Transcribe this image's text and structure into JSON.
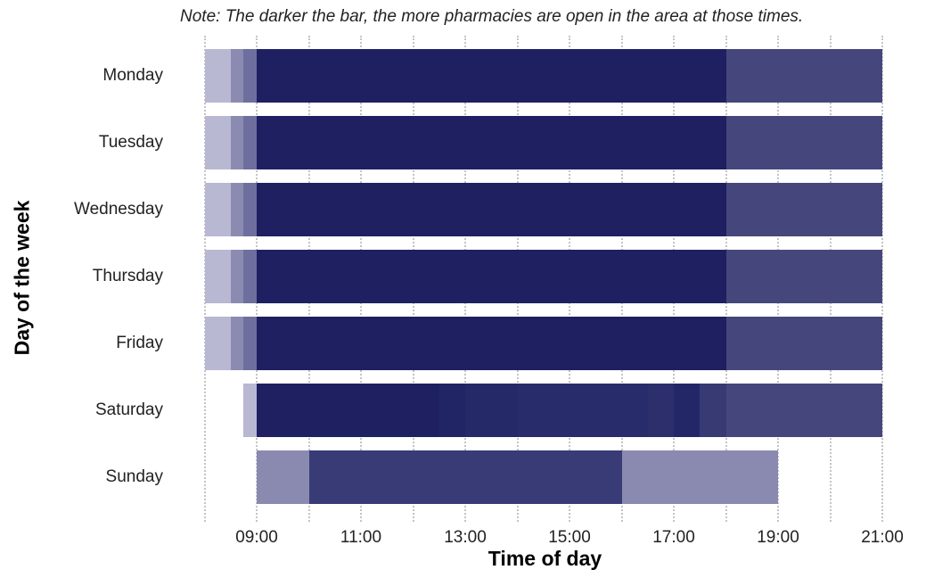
{
  "note": "Note: The darker the bar, the more pharmacies are open in the area at those times.",
  "chart_data": {
    "type": "bar",
    "subtype": "horizontal-timeline-heat",
    "title": "",
    "annotation": "Note: The darker the bar, the more pharmacies are open in the area at those times.",
    "xlabel": "Time of day",
    "ylabel": "Day of the week",
    "xlim": [
      "08:00",
      "21:00"
    ],
    "xticks": [
      "09:00",
      "11:00",
      "13:00",
      "15:00",
      "17:00",
      "19:00",
      "21:00"
    ],
    "grid": "vertical dotted, hourly",
    "categories": [
      "Monday",
      "Tuesday",
      "Wednesday",
      "Thursday",
      "Friday",
      "Saturday",
      "Sunday"
    ],
    "series": [
      {
        "name": "Monday",
        "segments": [
          {
            "start": "08:00",
            "end": "08:30",
            "shade": "light",
            "color": "#b8b8d3"
          },
          {
            "start": "08:30",
            "end": "08:45",
            "shade": "medium-light",
            "color": "#8b8bb2"
          },
          {
            "start": "08:45",
            "end": "09:00",
            "shade": "medium",
            "color": "#6e6f9e"
          },
          {
            "start": "09:00",
            "end": "18:00",
            "shade": "darkest",
            "color": "#1e2062"
          },
          {
            "start": "18:00",
            "end": "21:00",
            "shade": "dark",
            "color": "#45477c"
          }
        ]
      },
      {
        "name": "Tuesday",
        "segments": [
          {
            "start": "08:00",
            "end": "08:30",
            "shade": "light",
            "color": "#b8b8d3"
          },
          {
            "start": "08:30",
            "end": "08:45",
            "shade": "medium-light",
            "color": "#8b8bb2"
          },
          {
            "start": "08:45",
            "end": "09:00",
            "shade": "medium",
            "color": "#6e6f9e"
          },
          {
            "start": "09:00",
            "end": "18:00",
            "shade": "darkest",
            "color": "#1e2062"
          },
          {
            "start": "18:00",
            "end": "21:00",
            "shade": "dark",
            "color": "#45477c"
          }
        ]
      },
      {
        "name": "Wednesday",
        "segments": [
          {
            "start": "08:00",
            "end": "08:30",
            "shade": "light",
            "color": "#b8b8d3"
          },
          {
            "start": "08:30",
            "end": "08:45",
            "shade": "medium-light",
            "color": "#8b8bb2"
          },
          {
            "start": "08:45",
            "end": "09:00",
            "shade": "medium",
            "color": "#6e6f9e"
          },
          {
            "start": "09:00",
            "end": "18:00",
            "shade": "darkest",
            "color": "#1e2062"
          },
          {
            "start": "18:00",
            "end": "21:00",
            "shade": "dark",
            "color": "#45477c"
          }
        ]
      },
      {
        "name": "Thursday",
        "segments": [
          {
            "start": "08:00",
            "end": "08:30",
            "shade": "light",
            "color": "#b8b8d3"
          },
          {
            "start": "08:30",
            "end": "08:45",
            "shade": "medium-light",
            "color": "#8b8bb2"
          },
          {
            "start": "08:45",
            "end": "09:00",
            "shade": "medium",
            "color": "#6e6f9e"
          },
          {
            "start": "09:00",
            "end": "18:00",
            "shade": "darkest",
            "color": "#1e2062"
          },
          {
            "start": "18:00",
            "end": "21:00",
            "shade": "dark",
            "color": "#45477c"
          }
        ]
      },
      {
        "name": "Friday",
        "segments": [
          {
            "start": "08:00",
            "end": "08:30",
            "shade": "light",
            "color": "#b8b8d3"
          },
          {
            "start": "08:30",
            "end": "08:45",
            "shade": "medium-light",
            "color": "#8b8bb2"
          },
          {
            "start": "08:45",
            "end": "09:00",
            "shade": "medium",
            "color": "#6e6f9e"
          },
          {
            "start": "09:00",
            "end": "18:00",
            "shade": "darkest",
            "color": "#1e2062"
          },
          {
            "start": "18:00",
            "end": "21:00",
            "shade": "dark",
            "color": "#45477c"
          }
        ]
      },
      {
        "name": "Saturday",
        "segments": [
          {
            "start": "08:45",
            "end": "09:00",
            "shade": "light",
            "color": "#b8b8d3"
          },
          {
            "start": "09:00",
            "end": "12:30",
            "shade": "darkest",
            "color": "#1e2062"
          },
          {
            "start": "12:30",
            "end": "13:00",
            "shade": "darkest-2",
            "color": "#212465"
          },
          {
            "start": "13:00",
            "end": "14:00",
            "shade": "darkest-3",
            "color": "#262968"
          },
          {
            "start": "14:00",
            "end": "16:30",
            "shade": "darkest-4",
            "color": "#292c6a"
          },
          {
            "start": "16:30",
            "end": "17:00",
            "shade": "dark-1",
            "color": "#2c2f6c"
          },
          {
            "start": "17:00",
            "end": "17:30",
            "shade": "darkest-3",
            "color": "#242767"
          },
          {
            "start": "17:30",
            "end": "18:00",
            "shade": "dark-2",
            "color": "#383a74"
          },
          {
            "start": "18:00",
            "end": "21:00",
            "shade": "dark",
            "color": "#45477c"
          }
        ]
      },
      {
        "name": "Sunday",
        "segments": [
          {
            "start": "09:00",
            "end": "10:00",
            "shade": "medium-light",
            "color": "#8a8ab0"
          },
          {
            "start": "10:00",
            "end": "16:00",
            "shade": "dark",
            "color": "#393b76"
          },
          {
            "start": "16:00",
            "end": "19:00",
            "shade": "medium-light",
            "color": "#8a8ab0"
          }
        ]
      }
    ]
  }
}
